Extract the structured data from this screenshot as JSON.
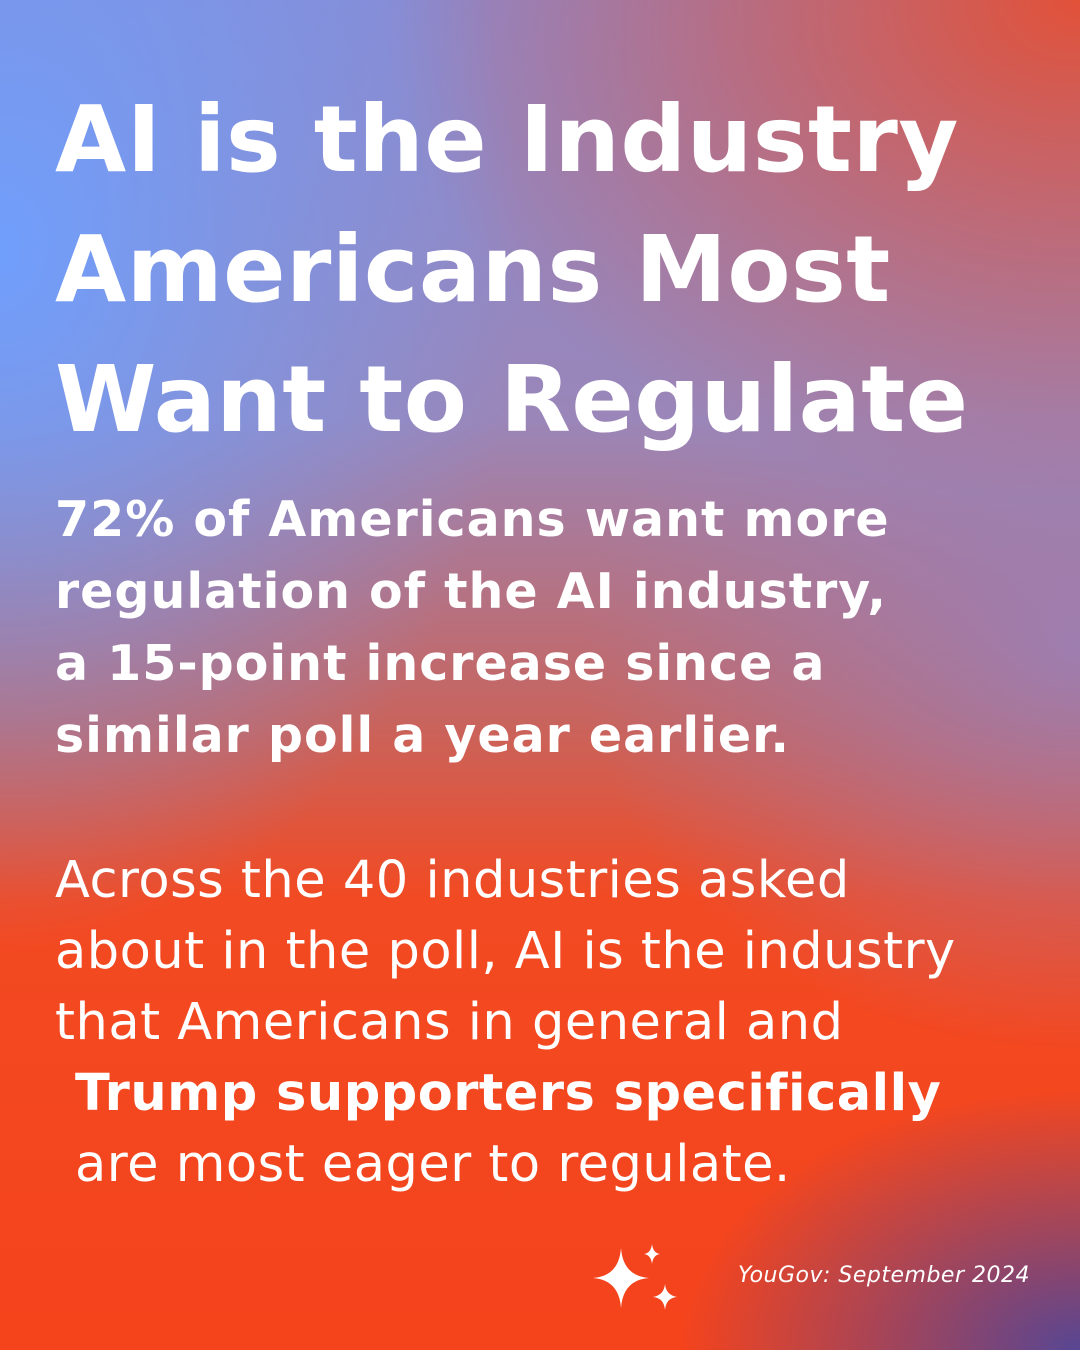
{
  "title": {
    "lines": [
      "AI is the Industry",
      "Americans Most",
      "Want to Regulate"
    ]
  },
  "subtitle": {
    "lines": [
      "72% of Americans want more",
      "regulation of the AI industry,",
      "a 15-point increase since a",
      "similar poll a year earlier."
    ]
  },
  "body": {
    "lines": [
      {
        "text": "Across the 40 industries asked",
        "bold": false
      },
      {
        "text": "about in the poll, AI is the industry",
        "bold": false
      },
      {
        "text": "that Americans in general and",
        "bold": false
      },
      {
        "text": "Trump supporters specifically",
        "bold": true
      },
      {
        "text": "are most eager to regulate.",
        "bold": false
      }
    ]
  },
  "source": "YouGov: September 2024"
}
